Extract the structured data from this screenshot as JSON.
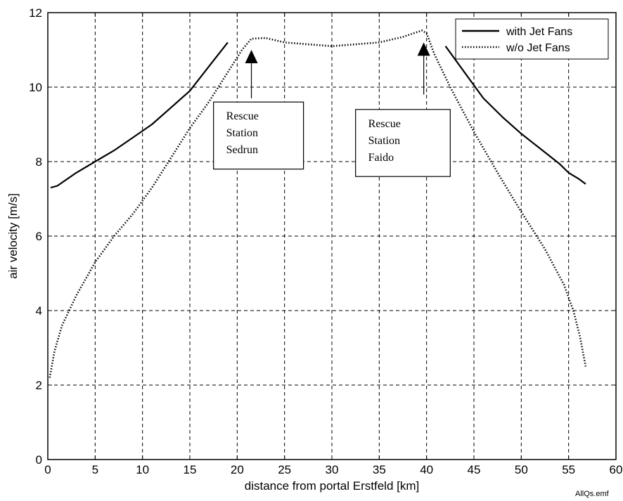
{
  "chart_data": {
    "type": "line",
    "title": "",
    "xlabel": "distance from portal Erstfeld [km]",
    "ylabel": "air velocity [m/s]",
    "xlim": [
      0,
      60
    ],
    "ylim": [
      0,
      12
    ],
    "xticks": [
      0,
      5,
      10,
      15,
      20,
      25,
      30,
      35,
      40,
      45,
      50,
      55,
      60
    ],
    "yticks": [
      0,
      2,
      4,
      6,
      8,
      10,
      12
    ],
    "grid": true,
    "legend_position": "top-right",
    "series": [
      {
        "name": "with Jet Fans",
        "style": "solid",
        "color": "#000000",
        "segments": [
          {
            "x": [
              0.3,
              1,
              3,
              5,
              7,
              9,
              11,
              13,
              15,
              17,
              19
            ],
            "y": [
              7.3,
              7.35,
              7.7,
              8.0,
              8.3,
              8.65,
              9.0,
              9.45,
              9.9,
              10.55,
              11.2
            ]
          },
          {
            "x": [
              42,
              44,
              46,
              48,
              50,
              52,
              54,
              55,
              56,
              56.8
            ],
            "y": [
              11.1,
              10.4,
              9.7,
              9.2,
              8.75,
              8.35,
              7.95,
              7.7,
              7.55,
              7.4
            ]
          }
        ]
      },
      {
        "name": "w/o Jet Fans",
        "style": "dotted",
        "color": "#000000",
        "segments": [
          {
            "x": [
              0.2,
              0.7,
              1.5,
              3,
              5,
              7,
              9,
              11,
              13,
              15,
              17,
              19,
              20.5,
              21.5,
              23,
              25,
              30,
              35,
              37.5,
              39.5,
              40,
              40.8,
              42.5,
              45,
              47.5,
              50,
              52.5,
              54.5,
              55.5,
              56.2,
              56.8
            ],
            "y": [
              2.2,
              2.9,
              3.6,
              4.4,
              5.3,
              6.0,
              6.6,
              7.3,
              8.1,
              8.9,
              9.6,
              10.4,
              11.0,
              11.3,
              11.32,
              11.2,
              11.1,
              11.2,
              11.35,
              11.52,
              11.45,
              10.9,
              10.0,
              8.8,
              7.7,
              6.65,
              5.65,
              4.7,
              4.0,
              3.3,
              2.5
            ]
          }
        ]
      }
    ],
    "annotations": [
      {
        "lines": [
          "Rescue",
          "Station",
          "Sedrun"
        ],
        "arrow_x": 21.5,
        "arrow_y_tip": 11.0,
        "arrow_y_tail": 9.7,
        "box": {
          "x0": 17.5,
          "x1": 27,
          "y0": 7.8,
          "y1": 9.6
        }
      },
      {
        "lines": [
          "Rescue",
          "Station",
          "Faido"
        ],
        "arrow_x": 39.7,
        "arrow_y_tip": 11.2,
        "arrow_y_tail": 9.8,
        "box": {
          "x0": 32.5,
          "x1": 42.5,
          "y0": 7.6,
          "y1": 9.4
        }
      }
    ],
    "footnote": "AllQs.emf"
  }
}
